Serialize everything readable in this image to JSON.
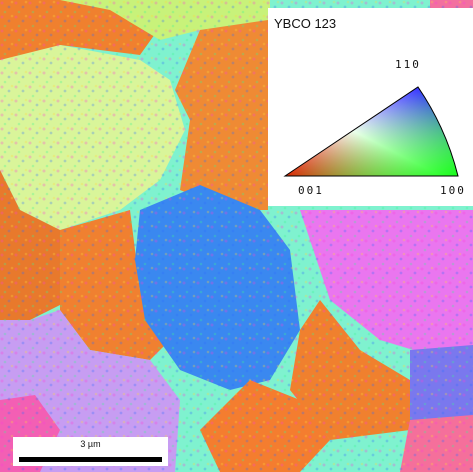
{
  "legend": {
    "title": "YBCO 123",
    "pole_top": "110",
    "pole_left": "001",
    "pole_right": "100"
  },
  "scalebar": {
    "label": "3 µm"
  },
  "colors": {
    "grain_green_yellow": "#d9f59a",
    "grain_blue": "#3a88f0",
    "grain_orange": "#f0802e",
    "grain_cyan": "#7ff2cf",
    "grain_magenta": "#ea76ef",
    "grain_lavender": "#c79df2",
    "grain_pink": "#f57f9f"
  }
}
